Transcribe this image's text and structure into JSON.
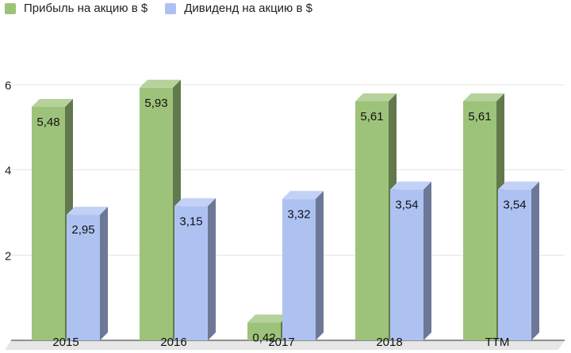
{
  "chart_data": {
    "type": "bar",
    "categories": [
      "2015",
      "2016",
      "2017",
      "2018",
      "TTM"
    ],
    "series": [
      {
        "name": "Прибыль на акцию в $",
        "values": [
          5.48,
          5.93,
          0.42,
          5.61,
          5.61
        ],
        "labels": [
          "5,48",
          "5,93",
          "0,42",
          "5,61",
          "5,61"
        ],
        "color": "#9dc37a"
      },
      {
        "name": "Дивиденд на акцию в $",
        "values": [
          2.95,
          3.15,
          3.32,
          3.54,
          3.54
        ],
        "labels": [
          "2,95",
          "3,15",
          "3,32",
          "3,54",
          "3,54"
        ],
        "color": "#aec2f2"
      }
    ],
    "yticks": [
      "2",
      "4",
      "6"
    ],
    "ylim": [
      0,
      6
    ],
    "grid": true,
    "legend_position": "top-left",
    "style": "3d-bar"
  }
}
